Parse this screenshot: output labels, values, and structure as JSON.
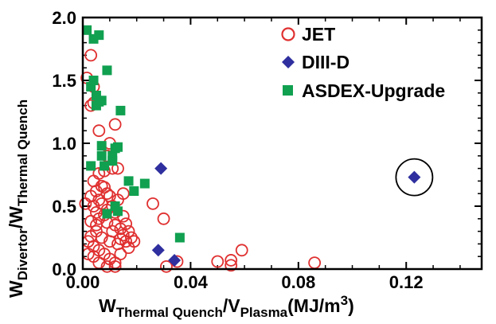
{
  "chart_data": {
    "type": "scatter",
    "xlabel": {
      "main": "W",
      "sub1": "Thermal Quench",
      "slash": "/V",
      "sub2": "Plasma",
      "unit": "(MJ/m",
      "sup": "3",
      "close": ")"
    },
    "ylabel": {
      "main1": "W",
      "sub1": "Divertor",
      "slash": "/W",
      "sub2": "Thermal Quench"
    },
    "xlim": [
      0.0,
      0.148
    ],
    "ylim": [
      0.0,
      2.0
    ],
    "xticks": [
      0.0,
      0.04,
      0.08,
      0.12
    ],
    "xtick_labels": [
      "0.00",
      "0.04",
      "0.08",
      "0.12"
    ],
    "yticks": [
      0.0,
      0.5,
      1.0,
      1.5,
      2.0
    ],
    "ytick_labels": [
      "0.0",
      "0.5",
      "1.0",
      "1.5",
      "2.0"
    ],
    "legend_position": "top-right",
    "series": [
      {
        "name": "JET",
        "marker": "open-circle",
        "color": "#e03030",
        "points": [
          [
            0.0015,
            1.52
          ],
          [
            0.003,
            1.7
          ],
          [
            0.003,
            1.3
          ],
          [
            0.004,
            1.45
          ],
          [
            0.004,
            1.32
          ],
          [
            0.006,
            1.1
          ],
          [
            0.01,
            1.0
          ],
          [
            0.012,
            1.15
          ],
          [
            0.009,
            0.9
          ],
          [
            0.011,
            0.8
          ],
          [
            0.013,
            0.8
          ],
          [
            0.015,
            0.6
          ],
          [
            0.013,
            0.55
          ],
          [
            0.011,
            0.5
          ],
          [
            0.008,
            0.78
          ],
          [
            0.006,
            0.76
          ],
          [
            0.004,
            0.7
          ],
          [
            0.007,
            0.66
          ],
          [
            0.005,
            0.62
          ],
          [
            0.008,
            0.65
          ],
          [
            0.009,
            0.6
          ],
          [
            0.003,
            0.58
          ],
          [
            0.01,
            0.58
          ],
          [
            0.006,
            0.55
          ],
          [
            0.004,
            0.5
          ],
          [
            0.001,
            0.52
          ],
          [
            0.007,
            0.52
          ],
          [
            0.009,
            0.47
          ],
          [
            0.012,
            0.45
          ],
          [
            0.015,
            0.42
          ],
          [
            0.005,
            0.45
          ],
          [
            0.008,
            0.43
          ],
          [
            0.003,
            0.38
          ],
          [
            0.006,
            0.4
          ],
          [
            0.009,
            0.37
          ],
          [
            0.012,
            0.35
          ],
          [
            0.014,
            0.32
          ],
          [
            0.016,
            0.36
          ],
          [
            0.017,
            0.3
          ],
          [
            0.015,
            0.27
          ],
          [
            0.018,
            0.25
          ],
          [
            0.016,
            0.22
          ],
          [
            0.019,
            0.22
          ],
          [
            0.013,
            0.2
          ],
          [
            0.01,
            0.22
          ],
          [
            0.007,
            0.25
          ],
          [
            0.005,
            0.3
          ],
          [
            0.003,
            0.26
          ],
          [
            0.002,
            0.22
          ],
          [
            0.004,
            0.18
          ],
          [
            0.006,
            0.15
          ],
          [
            0.008,
            0.12
          ],
          [
            0.01,
            0.08
          ],
          [
            0.012,
            0.05
          ],
          [
            0.012,
            0.02
          ],
          [
            0.004,
            0.1
          ],
          [
            0.002,
            0.12
          ],
          [
            0.006,
            0.05
          ],
          [
            0.009,
            0.02
          ],
          [
            0.014,
            0.12
          ],
          [
            0.017,
            0.17
          ],
          [
            0.011,
            0.3
          ],
          [
            0.005,
            0.35
          ],
          [
            0.014,
            0.24
          ],
          [
            0.026,
            0.52
          ],
          [
            0.03,
            0.4
          ],
          [
            0.031,
            0.02
          ],
          [
            0.035,
            0.06
          ],
          [
            0.05,
            0.06
          ],
          [
            0.055,
            0.07
          ],
          [
            0.055,
            0.03
          ],
          [
            0.059,
            0.15
          ],
          [
            0.086,
            0.05
          ]
        ]
      },
      {
        "name": "DIII-D",
        "marker": "filled-diamond",
        "color": "#2f2f9f",
        "points": [
          [
            0.029,
            0.8
          ],
          [
            0.028,
            0.15
          ],
          [
            0.034,
            0.07
          ],
          [
            0.123,
            0.73
          ]
        ]
      },
      {
        "name": "ASDEX-Upgrade",
        "marker": "filled-square",
        "color": "#10a050",
        "points": [
          [
            0.0015,
            1.9
          ],
          [
            0.004,
            1.83
          ],
          [
            0.006,
            1.86
          ],
          [
            0.009,
            1.58
          ],
          [
            0.005,
            1.38
          ],
          [
            0.006,
            1.33
          ],
          [
            0.005,
            1.3
          ],
          [
            0.007,
            1.34
          ],
          [
            0.003,
            1.45
          ],
          [
            0.004,
            1.5
          ],
          [
            0.014,
            1.26
          ],
          [
            0.007,
            0.98
          ],
          [
            0.007,
            0.9
          ],
          [
            0.011,
            0.9
          ],
          [
            0.012,
            0.96
          ],
          [
            0.011,
            0.86
          ],
          [
            0.013,
            0.97
          ],
          [
            0.003,
            0.82
          ],
          [
            0.008,
            0.82
          ],
          [
            0.017,
            0.7
          ],
          [
            0.023,
            0.68
          ],
          [
            0.019,
            0.62
          ],
          [
            0.012,
            0.5
          ],
          [
            0.009,
            0.44
          ],
          [
            0.013,
            0.46
          ],
          [
            0.036,
            0.25
          ]
        ]
      }
    ],
    "annotations": [
      {
        "type": "circle",
        "around": [
          0.123,
          0.73
        ]
      }
    ]
  }
}
